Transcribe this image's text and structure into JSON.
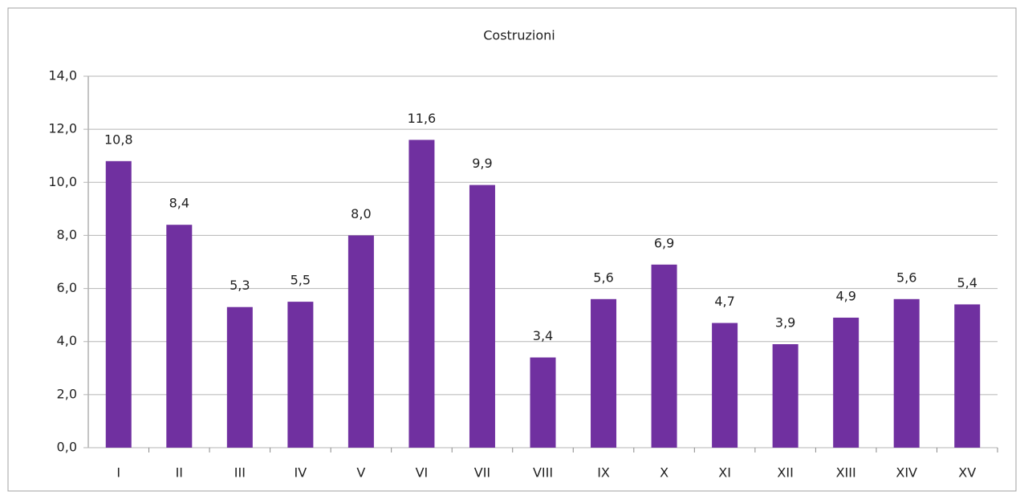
{
  "chart_data": {
    "type": "bar",
    "title": "Costruzioni",
    "categories": [
      "I",
      "II",
      "III",
      "IV",
      "V",
      "VI",
      "VII",
      "VIII",
      "IX",
      "X",
      "XI",
      "XII",
      "XIII",
      "XIV",
      "XV"
    ],
    "values": [
      10.8,
      8.4,
      5.3,
      5.5,
      8.0,
      11.6,
      9.9,
      3.4,
      5.6,
      6.9,
      4.7,
      3.9,
      4.9,
      5.6,
      5.4
    ],
    "value_labels": [
      "10,8",
      "8,4",
      "5,3",
      "5,5",
      "8,0",
      "11,6",
      "9,9",
      "3,4",
      "5,6",
      "6,9",
      "4,7",
      "3,9",
      "4,9",
      "5,6",
      "5,4"
    ],
    "color": "#7030a0",
    "ylim": [
      0,
      14
    ],
    "yticks": [
      {
        "value": 0,
        "label": "0,0"
      },
      {
        "value": 2,
        "label": "2,0"
      },
      {
        "value": 4,
        "label": "4,0"
      },
      {
        "value": 6,
        "label": "6,0"
      },
      {
        "value": 8,
        "label": "8,0"
      },
      {
        "value": 10,
        "label": "10,0"
      },
      {
        "value": 12,
        "label": "12,0"
      },
      {
        "value": 14,
        "label": "14,0"
      }
    ],
    "grid": true
  }
}
